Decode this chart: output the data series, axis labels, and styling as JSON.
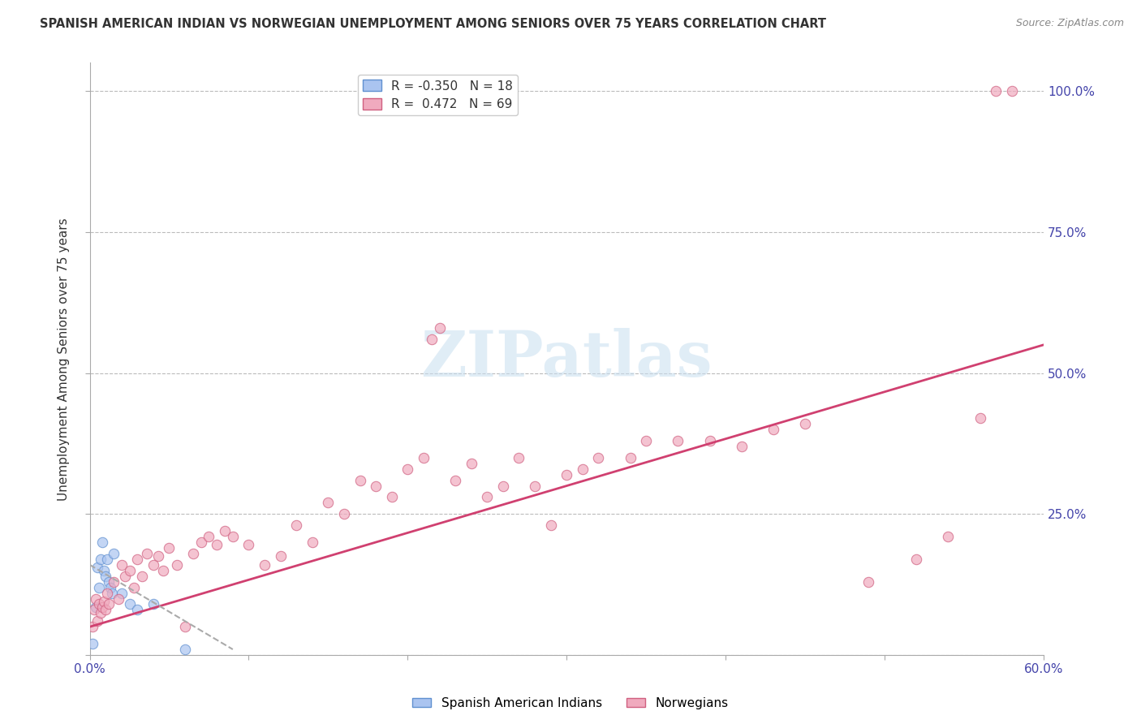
{
  "title": "SPANISH AMERICAN INDIAN VS NORWEGIAN UNEMPLOYMENT AMONG SENIORS OVER 75 YEARS CORRELATION CHART",
  "source": "Source: ZipAtlas.com",
  "ylabel": "Unemployment Among Seniors over 75 years",
  "xlim": [
    0.0,
    0.6
  ],
  "ylim": [
    0.0,
    1.05
  ],
  "watermark_text": "ZIPatlas",
  "R_blue": -0.35,
  "N_blue": 18,
  "R_pink": 0.472,
  "N_pink": 69,
  "blue_color": "#aac4f0",
  "pink_color": "#f0aabe",
  "blue_edge": "#6090d0",
  "pink_edge": "#d06080",
  "blue_line_color": "#2255aa",
  "blue_line_style": "--",
  "pink_line_color": "#d04070",
  "pink_line_style": "-",
  "grid_color": "#bbbbbb",
  "background_color": "#ffffff",
  "tick_label_color": "#4444aa",
  "title_color": "#333333",
  "source_color": "#888888",
  "ylabel_color": "#333333",
  "blue_x": [
    0.002,
    0.004,
    0.005,
    0.006,
    0.007,
    0.008,
    0.009,
    0.01,
    0.011,
    0.012,
    0.013,
    0.014,
    0.015,
    0.02,
    0.025,
    0.03,
    0.04,
    0.06
  ],
  "blue_y": [
    0.02,
    0.085,
    0.155,
    0.12,
    0.17,
    0.2,
    0.15,
    0.14,
    0.17,
    0.13,
    0.12,
    0.11,
    0.18,
    0.11,
    0.09,
    0.08,
    0.09,
    0.01
  ],
  "pink_x": [
    0.002,
    0.003,
    0.004,
    0.005,
    0.006,
    0.007,
    0.008,
    0.009,
    0.01,
    0.011,
    0.012,
    0.015,
    0.018,
    0.02,
    0.022,
    0.025,
    0.028,
    0.03,
    0.033,
    0.036,
    0.04,
    0.043,
    0.046,
    0.05,
    0.055,
    0.06,
    0.065,
    0.07,
    0.075,
    0.08,
    0.085,
    0.09,
    0.1,
    0.11,
    0.12,
    0.13,
    0.14,
    0.15,
    0.16,
    0.17,
    0.18,
    0.19,
    0.2,
    0.21,
    0.215,
    0.22,
    0.23,
    0.24,
    0.25,
    0.26,
    0.27,
    0.28,
    0.29,
    0.3,
    0.31,
    0.32,
    0.34,
    0.35,
    0.37,
    0.39,
    0.41,
    0.43,
    0.45,
    0.49,
    0.52,
    0.54,
    0.56,
    0.57,
    0.58
  ],
  "pink_y": [
    0.05,
    0.08,
    0.1,
    0.06,
    0.09,
    0.075,
    0.085,
    0.095,
    0.08,
    0.11,
    0.09,
    0.13,
    0.1,
    0.16,
    0.14,
    0.15,
    0.12,
    0.17,
    0.14,
    0.18,
    0.16,
    0.175,
    0.15,
    0.19,
    0.16,
    0.05,
    0.18,
    0.2,
    0.21,
    0.195,
    0.22,
    0.21,
    0.195,
    0.16,
    0.175,
    0.23,
    0.2,
    0.27,
    0.25,
    0.31,
    0.3,
    0.28,
    0.33,
    0.35,
    0.56,
    0.58,
    0.31,
    0.34,
    0.28,
    0.3,
    0.35,
    0.3,
    0.23,
    0.32,
    0.33,
    0.35,
    0.35,
    0.38,
    0.38,
    0.38,
    0.37,
    0.4,
    0.41,
    0.13,
    0.17,
    0.21,
    0.42,
    1.0,
    1.0
  ],
  "pink_line_x": [
    0.0,
    0.6
  ],
  "pink_line_y": [
    0.05,
    0.55
  ],
  "blue_line_x": [
    0.0,
    0.09
  ],
  "blue_line_y": [
    0.16,
    0.01
  ],
  "legend_blue_label": "R = -0.350   N = 18",
  "legend_pink_label": "R =  0.472   N = 69",
  "bottom_legend_blue": "Spanish American Indians",
  "bottom_legend_pink": "Norwegians",
  "marker_size": 80,
  "marker_alpha": 0.7
}
